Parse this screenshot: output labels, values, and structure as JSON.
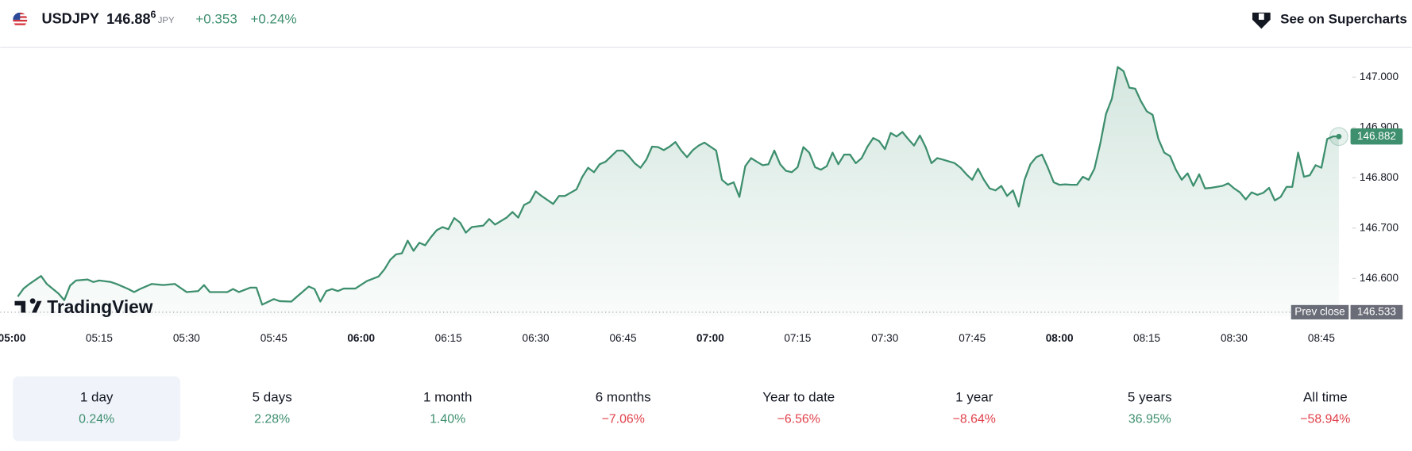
{
  "header": {
    "symbol": "USDJPY",
    "price_main": "146.88",
    "price_fraction": "6",
    "currency": "JPY",
    "change": "+0.353",
    "change_percent": "+0.24%",
    "link": "See on Supercharts"
  },
  "logo": "TradingView",
  "chart_data": {
    "type": "area",
    "x": [
      "05:01",
      "05:02",
      "05:03",
      "05:05",
      "05:06",
      "05:08",
      "05:09",
      "05:10",
      "05:11",
      "05:13",
      "05:14",
      "05:15",
      "05:17",
      "05:18",
      "05:20",
      "05:21",
      "05:22",
      "05:24",
      "05:26",
      "05:28",
      "05:30",
      "05:32",
      "05:33",
      "05:34",
      "05:37",
      "05:38",
      "05:39",
      "05:41",
      "05:42",
      "05:43",
      "05:45",
      "05:46",
      "05:48",
      "05:49",
      "05:51",
      "05:52",
      "05:53",
      "05:54",
      "05:55",
      "05:56",
      "05:57",
      "05:59",
      "06:01",
      "06:03",
      "06:04",
      "06:05",
      "06:06",
      "06:07",
      "06:08",
      "06:09",
      "06:10",
      "06:11",
      "06:12",
      "06:13",
      "06:14",
      "06:15",
      "06:16",
      "06:17",
      "06:18",
      "06:19",
      "06:21",
      "06:22",
      "06:23",
      "06:25",
      "06:26",
      "06:27",
      "06:28",
      "06:29",
      "06:30",
      "06:31",
      "06:33",
      "06:34",
      "06:35",
      "06:37",
      "06:38",
      "06:39",
      "06:40",
      "06:41",
      "06:42",
      "06:44",
      "06:45",
      "06:46",
      "06:47",
      "06:48",
      "06:49",
      "06:50",
      "06:51",
      "06:52",
      "06:53",
      "06:54",
      "06:55",
      "06:56",
      "06:57",
      "06:58",
      "06:59",
      "07:01",
      "07:02",
      "07:03",
      "07:04",
      "07:05",
      "07:06",
      "07:07",
      "07:08",
      "07:09",
      "07:10",
      "07:11",
      "07:12",
      "07:13",
      "07:14",
      "07:15",
      "07:16",
      "07:17",
      "07:18",
      "07:19",
      "07:20",
      "07:21",
      "07:22",
      "07:23",
      "07:24",
      "07:25",
      "07:26",
      "07:27",
      "07:28",
      "07:29",
      "07:30",
      "07:31",
      "07:32",
      "07:33",
      "07:34",
      "07:35",
      "07:36",
      "07:37",
      "07:38",
      "07:39",
      "07:40",
      "07:42",
      "07:43",
      "07:44",
      "07:45",
      "07:46",
      "07:47",
      "07:48",
      "07:49",
      "07:50",
      "07:51",
      "07:52",
      "07:53",
      "07:54",
      "07:55",
      "07:56",
      "07:57",
      "07:58",
      "07:59",
      "08:00",
      "08:01",
      "08:02",
      "08:03",
      "08:04",
      "08:05",
      "08:06",
      "08:07",
      "08:08",
      "08:09",
      "08:10",
      "08:11",
      "08:12",
      "08:13",
      "08:14",
      "08:15",
      "08:16",
      "08:17",
      "08:18",
      "08:19",
      "08:20",
      "08:21",
      "08:22",
      "08:23",
      "08:24",
      "08:25",
      "08:26",
      "08:27",
      "08:28",
      "08:29",
      "08:30",
      "08:31",
      "08:32",
      "08:33",
      "08:34",
      "08:35",
      "08:36",
      "08:37",
      "08:38",
      "08:39",
      "08:40",
      "08:41",
      "08:42",
      "08:43",
      "08:44",
      "08:45",
      "08:46",
      "08:47",
      "08:48"
    ],
    "series": [
      {
        "color": "#3d8f6e",
        "values": [
          146.564,
          146.58,
          146.589,
          146.605,
          146.589,
          146.57,
          146.557,
          146.586,
          146.596,
          146.598,
          146.593,
          146.596,
          146.593,
          146.589,
          146.579,
          146.573,
          146.579,
          146.589,
          146.587,
          146.589,
          146.573,
          146.575,
          146.587,
          146.573,
          146.573,
          146.579,
          146.573,
          146.582,
          146.582,
          146.548,
          146.559,
          146.555,
          146.554,
          146.564,
          146.584,
          146.579,
          146.554,
          146.575,
          146.579,
          146.575,
          146.58,
          146.58,
          146.595,
          146.604,
          146.618,
          146.637,
          146.648,
          146.65,
          146.675,
          146.655,
          146.671,
          146.666,
          146.682,
          146.696,
          146.702,
          146.698,
          146.72,
          146.711,
          146.691,
          146.702,
          146.705,
          146.718,
          146.707,
          146.721,
          146.732,
          146.721,
          146.746,
          146.752,
          146.773,
          146.764,
          146.748,
          146.764,
          146.764,
          146.777,
          146.802,
          146.82,
          146.811,
          146.827,
          146.832,
          146.854,
          146.854,
          146.843,
          146.829,
          146.82,
          146.836,
          146.862,
          146.861,
          146.855,
          146.862,
          146.871,
          146.854,
          146.841,
          146.855,
          146.864,
          146.87,
          146.854,
          146.796,
          146.786,
          146.791,
          146.762,
          146.823,
          146.839,
          146.832,
          146.825,
          146.827,
          146.854,
          146.827,
          146.814,
          146.811,
          146.821,
          146.861,
          146.85,
          146.821,
          146.816,
          146.823,
          146.85,
          146.827,
          146.846,
          146.846,
          146.829,
          146.839,
          146.862,
          146.879,
          146.873,
          146.857,
          146.889,
          146.882,
          146.891,
          146.877,
          146.864,
          146.884,
          146.861,
          146.829,
          146.839,
          146.836,
          146.829,
          146.82,
          146.807,
          146.796,
          146.818,
          146.796,
          146.779,
          146.775,
          146.784,
          146.764,
          146.775,
          146.743,
          146.796,
          146.827,
          146.841,
          146.846,
          146.82,
          146.791,
          146.786,
          146.787,
          146.786,
          146.786,
          146.802,
          146.796,
          146.818,
          146.868,
          146.927,
          146.957,
          147.02,
          147.012,
          146.979,
          146.977,
          146.952,
          146.932,
          146.925,
          146.877,
          146.85,
          146.843,
          146.816,
          146.796,
          146.809,
          146.784,
          146.807,
          146.779,
          146.78,
          146.782,
          146.784,
          146.789,
          146.779,
          146.771,
          146.757,
          146.771,
          146.766,
          146.77,
          146.78,
          146.755,
          146.762,
          146.782,
          146.782,
          146.85,
          146.802,
          146.805,
          146.825,
          146.82,
          146.877,
          146.882,
          146.882
        ]
      }
    ],
    "xlim": [
      "04:58",
      "08:50"
    ],
    "xticks": [
      "05:00",
      "05:15",
      "05:30",
      "05:45",
      "06:00",
      "06:15",
      "06:30",
      "06:45",
      "07:00",
      "07:15",
      "07:30",
      "07:45",
      "08:00",
      "08:15",
      "08:30",
      "08:45"
    ],
    "ylim": [
      146.525,
      147.055
    ],
    "yticks": [
      {
        "value": 146.6,
        "label": "146.600"
      },
      {
        "value": 146.7,
        "label": "146.700"
      },
      {
        "value": 146.8,
        "label": "146.800"
      },
      {
        "value": 146.9,
        "label": "146.900"
      },
      {
        "value": 147.0,
        "label": "147.000"
      }
    ],
    "prev_close": {
      "label": "Prev close",
      "value": 146.533
    }
  },
  "periods": [
    {
      "label": "1 day",
      "change": "0.24%",
      "color": "#3d8f6e",
      "selected": true
    },
    {
      "label": "5 days",
      "change": "2.28%",
      "color": "#3d8f6e"
    },
    {
      "label": "1 month",
      "change": "1.40%",
      "color": "#3d8f6e"
    },
    {
      "label": "6 months",
      "change": "−7.06%",
      "color": "#e0414b"
    },
    {
      "label": "Year to date",
      "change": "−6.56%",
      "color": "#e0414b"
    },
    {
      "label": "1 year",
      "change": "−8.64%",
      "color": "#e0414b"
    },
    {
      "label": "5 years",
      "change": "36.95%",
      "color": "#3d8f6e"
    },
    {
      "label": "All time",
      "change": "−58.94%",
      "color": "#e0414b"
    }
  ]
}
